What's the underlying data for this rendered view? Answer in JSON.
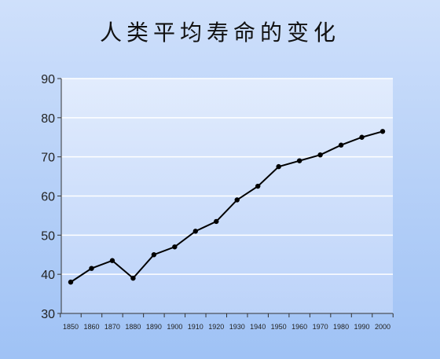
{
  "chart_data": {
    "type": "line",
    "title": "人类平均寿命的变化",
    "xlabel": "",
    "ylabel": "",
    "x": [
      "1850",
      "1860",
      "1870",
      "1880",
      "1890",
      "1900",
      "1910",
      "1920",
      "1930",
      "1940",
      "1950",
      "1960",
      "1970",
      "1980",
      "1990",
      "2000"
    ],
    "series": [
      {
        "values": [
          38,
          41.5,
          43.5,
          39,
          45,
          47,
          51,
          53.5,
          59,
          62.5,
          67.5,
          69,
          70.5,
          73,
          75,
          76.5
        ],
        "color": "#000000"
      }
    ],
    "yticks": [
      "30",
      "40",
      "50",
      "60",
      "70",
      "80",
      "90"
    ],
    "ylim": [
      30,
      90
    ],
    "grid": true,
    "legend": "none",
    "plot_background": "#dbe8fd",
    "gridline_color": "#ffffff"
  }
}
